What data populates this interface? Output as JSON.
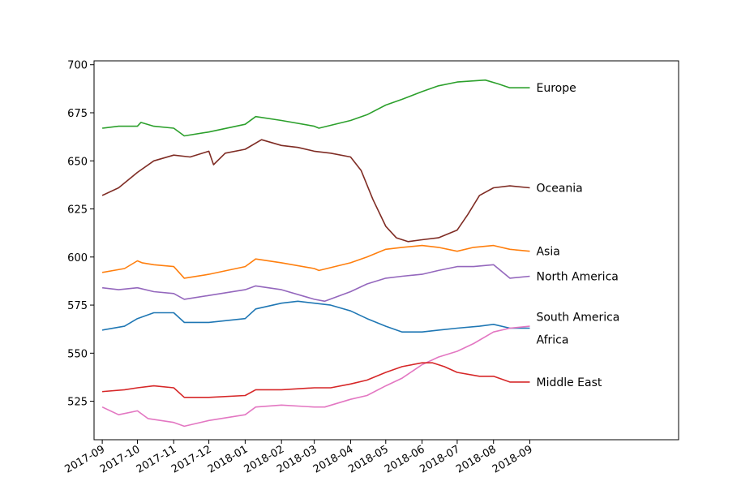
{
  "chart_data": {
    "type": "line",
    "title": "",
    "xlabel": "",
    "ylabel": "",
    "x_axis": "date",
    "xlim": [
      "2017-08-25",
      "2019-01-06"
    ],
    "ylim": [
      505,
      702
    ],
    "grid": false,
    "legend": "none",
    "x_ticks": [
      "2017-09",
      "2017-10",
      "2017-11",
      "2017-12",
      "2018-01",
      "2018-02",
      "2018-03",
      "2018-04",
      "2018-05",
      "2018-06",
      "2018-07",
      "2018-08",
      "2018-09"
    ],
    "x_tick_dates": [
      "2017-09-01",
      "2017-10-01",
      "2017-11-01",
      "2017-12-01",
      "2018-01-01",
      "2018-02-01",
      "2018-03-01",
      "2018-04-01",
      "2018-05-01",
      "2018-06-01",
      "2018-07-01",
      "2018-08-01",
      "2018-09-01"
    ],
    "y_ticks": [
      525,
      550,
      575,
      600,
      625,
      650,
      675,
      700
    ],
    "series": [
      {
        "name": "Europe",
        "color": "#2ca02c",
        "dates": [
          "2017-09-01",
          "2017-09-15",
          "2017-10-01",
          "2017-10-04",
          "2017-10-15",
          "2017-11-01",
          "2017-11-10",
          "2017-12-01",
          "2018-01-01",
          "2018-01-10",
          "2018-02-01",
          "2018-03-01",
          "2018-03-05",
          "2018-04-01",
          "2018-04-15",
          "2018-05-01",
          "2018-05-15",
          "2018-06-01",
          "2018-06-15",
          "2018-07-01",
          "2018-07-25",
          "2018-08-05",
          "2018-08-15",
          "2018-09-01"
        ],
        "values": [
          667,
          668,
          668,
          670,
          668,
          667,
          663,
          665,
          669,
          673,
          671,
          668,
          667,
          671,
          674,
          679,
          682,
          686,
          689,
          691,
          692,
          690,
          688,
          688
        ]
      },
      {
        "name": "Oceania",
        "color": "#7f2c24",
        "dates": [
          "2017-09-01",
          "2017-09-15",
          "2017-10-01",
          "2017-10-15",
          "2017-11-01",
          "2017-11-15",
          "2017-12-01",
          "2017-12-05",
          "2017-12-15",
          "2018-01-01",
          "2018-01-15",
          "2018-02-01",
          "2018-02-15",
          "2018-03-01",
          "2018-03-15",
          "2018-04-01",
          "2018-04-10",
          "2018-04-20",
          "2018-05-01",
          "2018-05-10",
          "2018-05-20",
          "2018-06-01",
          "2018-06-15",
          "2018-07-01",
          "2018-07-10",
          "2018-07-20",
          "2018-08-01",
          "2018-08-15",
          "2018-09-01"
        ],
        "values": [
          632,
          636,
          644,
          650,
          653,
          652,
          655,
          648,
          654,
          656,
          661,
          658,
          657,
          655,
          654,
          652,
          645,
          630,
          616,
          610,
          608,
          609,
          610,
          614,
          622,
          632,
          636,
          637,
          636
        ]
      },
      {
        "name": "Asia",
        "color": "#ff7f0e",
        "dates": [
          "2017-09-01",
          "2017-09-20",
          "2017-10-01",
          "2017-10-05",
          "2017-10-15",
          "2017-11-01",
          "2017-11-10",
          "2017-12-01",
          "2018-01-01",
          "2018-01-10",
          "2018-02-01",
          "2018-03-01",
          "2018-03-05",
          "2018-04-01",
          "2018-04-15",
          "2018-05-01",
          "2018-05-15",
          "2018-06-01",
          "2018-06-15",
          "2018-07-01",
          "2018-07-15",
          "2018-08-01",
          "2018-08-15",
          "2018-09-01"
        ],
        "values": [
          592,
          594,
          598,
          597,
          596,
          595,
          589,
          591,
          595,
          599,
          597,
          594,
          593,
          597,
          600,
          604,
          605,
          606,
          605,
          603,
          605,
          606,
          604,
          603
        ]
      },
      {
        "name": "North America",
        "color": "#9467bd",
        "dates": [
          "2017-09-01",
          "2017-09-15",
          "2017-10-01",
          "2017-10-15",
          "2017-11-01",
          "2017-11-10",
          "2017-12-01",
          "2018-01-01",
          "2018-01-10",
          "2018-02-01",
          "2018-03-01",
          "2018-03-10",
          "2018-04-01",
          "2018-04-15",
          "2018-05-01",
          "2018-05-15",
          "2018-06-01",
          "2018-06-15",
          "2018-07-01",
          "2018-07-15",
          "2018-08-01",
          "2018-08-15",
          "2018-09-01"
        ],
        "values": [
          584,
          583,
          584,
          582,
          581,
          578,
          580,
          583,
          585,
          583,
          578,
          577,
          582,
          586,
          589,
          590,
          591,
          593,
          595,
          595,
          596,
          589,
          590
        ]
      },
      {
        "name": "South America",
        "color": "#1f77b4",
        "dates": [
          "2017-09-01",
          "2017-09-20",
          "2017-10-01",
          "2017-10-15",
          "2017-11-01",
          "2017-11-10",
          "2017-12-01",
          "2018-01-01",
          "2018-01-10",
          "2018-02-01",
          "2018-02-15",
          "2018-03-01",
          "2018-03-15",
          "2018-04-01",
          "2018-04-15",
          "2018-05-01",
          "2018-05-15",
          "2018-06-01",
          "2018-06-15",
          "2018-07-01",
          "2018-07-20",
          "2018-08-01",
          "2018-08-15",
          "2018-09-01"
        ],
        "values": [
          562,
          564,
          568,
          571,
          571,
          566,
          566,
          568,
          573,
          576,
          577,
          576,
          575,
          572,
          568,
          564,
          561,
          561,
          562,
          563,
          564,
          565,
          563,
          563
        ]
      },
      {
        "name": "Africa",
        "color": "#e377c2",
        "dates": [
          "2017-09-01",
          "2017-09-15",
          "2017-10-01",
          "2017-10-10",
          "2017-11-01",
          "2017-11-10",
          "2017-12-01",
          "2018-01-01",
          "2018-01-10",
          "2018-02-01",
          "2018-03-01",
          "2018-03-10",
          "2018-04-01",
          "2018-04-15",
          "2018-05-01",
          "2018-05-15",
          "2018-06-01",
          "2018-06-15",
          "2018-07-01",
          "2018-07-15",
          "2018-08-01",
          "2018-08-15",
          "2018-09-01"
        ],
        "values": [
          522,
          518,
          520,
          516,
          514,
          512,
          515,
          518,
          522,
          523,
          522,
          522,
          526,
          528,
          533,
          537,
          544,
          548,
          551,
          555,
          561,
          563,
          564
        ]
      },
      {
        "name": "Middle East",
        "color": "#d62728",
        "dates": [
          "2017-09-01",
          "2017-09-20",
          "2017-10-01",
          "2017-10-15",
          "2017-11-01",
          "2017-11-10",
          "2017-12-01",
          "2018-01-01",
          "2018-01-10",
          "2018-02-01",
          "2018-03-01",
          "2018-03-15",
          "2018-04-01",
          "2018-04-15",
          "2018-05-01",
          "2018-05-15",
          "2018-06-01",
          "2018-06-10",
          "2018-06-20",
          "2018-07-01",
          "2018-07-20",
          "2018-08-01",
          "2018-08-15",
          "2018-09-01"
        ],
        "values": [
          530,
          531,
          532,
          533,
          532,
          527,
          527,
          528,
          531,
          531,
          532,
          532,
          534,
          536,
          540,
          543,
          545,
          545,
          543,
          540,
          538,
          538,
          535,
          535
        ]
      }
    ],
    "series_label_values": {
      "Europe": 688,
      "Oceania": 636,
      "Asia": 603,
      "North America": 590,
      "South America": 569,
      "Africa": 557,
      "Middle East": 535
    }
  }
}
